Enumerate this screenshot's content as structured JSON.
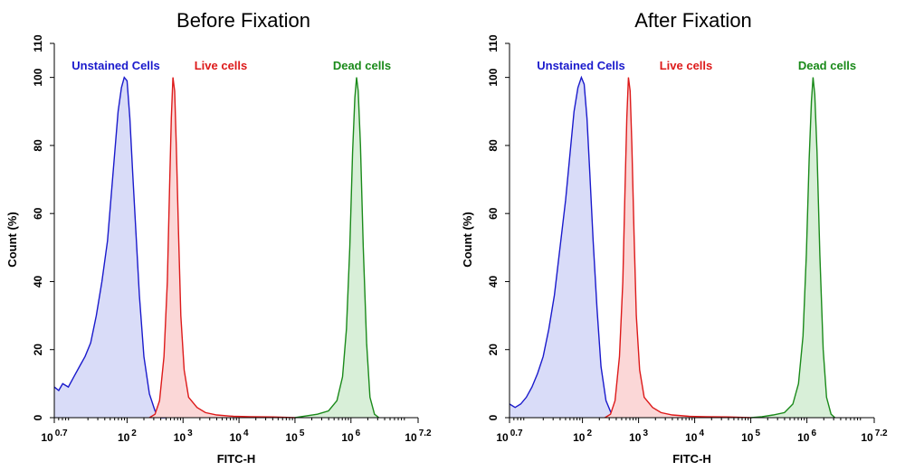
{
  "chart_data": [
    {
      "type": "area",
      "title": "Before Fixation",
      "xlabel": "FITC-H",
      "ylabel": "Count  (%)",
      "xscale": "log",
      "xlim": [
        0.7,
        7.2
      ],
      "ylim": [
        0,
        110
      ],
      "yticks": [
        0,
        20,
        40,
        60,
        80,
        100,
        110
      ],
      "xticks": [
        {
          "exp": 0.7,
          "base": "10",
          "sup": "0.7"
        },
        {
          "exp": 2,
          "base": "10",
          "sup": "2"
        },
        {
          "exp": 3,
          "base": "10",
          "sup": "3"
        },
        {
          "exp": 4,
          "base": "10",
          "sup": "4"
        },
        {
          "exp": 5,
          "base": "10",
          "sup": "5"
        },
        {
          "exp": 6,
          "base": "10",
          "sup": "6"
        },
        {
          "exp": 7.2,
          "base": "10",
          "sup": "7.2"
        }
      ],
      "grid": false,
      "series": [
        {
          "name": "Unstained Cells",
          "color": "#1a1acc",
          "fill": "#d9dcf8",
          "points": [
            [
              0.7,
              9
            ],
            [
              0.78,
              8
            ],
            [
              0.85,
              10
            ],
            [
              0.95,
              9
            ],
            [
              1.05,
              12
            ],
            [
              1.15,
              15
            ],
            [
              1.25,
              18
            ],
            [
              1.35,
              22
            ],
            [
              1.45,
              30
            ],
            [
              1.55,
              40
            ],
            [
              1.65,
              52
            ],
            [
              1.72,
              66
            ],
            [
              1.78,
              78
            ],
            [
              1.84,
              90
            ],
            [
              1.9,
              97
            ],
            [
              1.95,
              100
            ],
            [
              2.0,
              99
            ],
            [
              2.05,
              88
            ],
            [
              2.1,
              72
            ],
            [
              2.16,
              54
            ],
            [
              2.22,
              36
            ],
            [
              2.3,
              18
            ],
            [
              2.4,
              7
            ],
            [
              2.5,
              2
            ],
            [
              2.6,
              0
            ],
            [
              2.7,
              0
            ]
          ]
        },
        {
          "name": "Live cells",
          "color": "#dd1a1a",
          "fill": "#fbd7d7",
          "points": [
            [
              2.4,
              0
            ],
            [
              2.5,
              1
            ],
            [
              2.58,
              5
            ],
            [
              2.66,
              18
            ],
            [
              2.72,
              40
            ],
            [
              2.76,
              68
            ],
            [
              2.79,
              88
            ],
            [
              2.82,
              100
            ],
            [
              2.85,
              96
            ],
            [
              2.88,
              80
            ],
            [
              2.92,
              54
            ],
            [
              2.96,
              30
            ],
            [
              3.02,
              14
            ],
            [
              3.1,
              6
            ],
            [
              3.25,
              3
            ],
            [
              3.4,
              1.5
            ],
            [
              3.6,
              0.8
            ],
            [
              3.9,
              0.4
            ],
            [
              4.2,
              0.3
            ],
            [
              4.6,
              0.2
            ],
            [
              5.0,
              0
            ]
          ]
        },
        {
          "name": "Dead cells",
          "color": "#1a8a1a",
          "fill": "#d8efd8",
          "points": [
            [
              5.0,
              0
            ],
            [
              5.2,
              0.5
            ],
            [
              5.4,
              1
            ],
            [
              5.6,
              2
            ],
            [
              5.75,
              5
            ],
            [
              5.85,
              12
            ],
            [
              5.92,
              26
            ],
            [
              5.98,
              50
            ],
            [
              6.03,
              78
            ],
            [
              6.07,
              94
            ],
            [
              6.1,
              100
            ],
            [
              6.13,
              96
            ],
            [
              6.17,
              80
            ],
            [
              6.22,
              50
            ],
            [
              6.28,
              22
            ],
            [
              6.34,
              6
            ],
            [
              6.42,
              1
            ],
            [
              6.5,
              0
            ]
          ]
        }
      ]
    },
    {
      "type": "area",
      "title": "After Fixation",
      "xlabel": "FITC-H",
      "ylabel": "Count  (%)",
      "xscale": "log",
      "xlim": [
        0.7,
        7.2
      ],
      "ylim": [
        0,
        110
      ],
      "yticks": [
        0,
        20,
        40,
        60,
        80,
        100,
        110
      ],
      "xticks": [
        {
          "exp": 0.7,
          "base": "10",
          "sup": "0.7"
        },
        {
          "exp": 2,
          "base": "10",
          "sup": "2"
        },
        {
          "exp": 3,
          "base": "10",
          "sup": "3"
        },
        {
          "exp": 4,
          "base": "10",
          "sup": "4"
        },
        {
          "exp": 5,
          "base": "10",
          "sup": "5"
        },
        {
          "exp": 6,
          "base": "10",
          "sup": "6"
        },
        {
          "exp": 7.2,
          "base": "10",
          "sup": "7.2"
        }
      ],
      "grid": false,
      "series": [
        {
          "name": "Unstained Cells",
          "color": "#1a1acc",
          "fill": "#d9dcf8",
          "points": [
            [
              0.7,
              4
            ],
            [
              0.8,
              3
            ],
            [
              0.9,
              4
            ],
            [
              1.0,
              6
            ],
            [
              1.1,
              9
            ],
            [
              1.2,
              13
            ],
            [
              1.3,
              18
            ],
            [
              1.4,
              26
            ],
            [
              1.5,
              36
            ],
            [
              1.6,
              50
            ],
            [
              1.7,
              64
            ],
            [
              1.78,
              78
            ],
            [
              1.85,
              90
            ],
            [
              1.92,
              97
            ],
            [
              1.98,
              100
            ],
            [
              2.03,
              98
            ],
            [
              2.08,
              88
            ],
            [
              2.13,
              72
            ],
            [
              2.19,
              52
            ],
            [
              2.26,
              32
            ],
            [
              2.33,
              15
            ],
            [
              2.42,
              5
            ],
            [
              2.52,
              1
            ],
            [
              2.62,
              0
            ]
          ]
        },
        {
          "name": "Live cells",
          "color": "#dd1a1a",
          "fill": "#fbd7d7",
          "points": [
            [
              2.4,
              0
            ],
            [
              2.5,
              1
            ],
            [
              2.58,
              5
            ],
            [
              2.66,
              18
            ],
            [
              2.72,
              40
            ],
            [
              2.76,
              68
            ],
            [
              2.79,
              88
            ],
            [
              2.82,
              100
            ],
            [
              2.85,
              96
            ],
            [
              2.88,
              80
            ],
            [
              2.92,
              54
            ],
            [
              2.96,
              30
            ],
            [
              3.02,
              14
            ],
            [
              3.1,
              6
            ],
            [
              3.25,
              3
            ],
            [
              3.4,
              1.5
            ],
            [
              3.6,
              0.8
            ],
            [
              3.9,
              0.4
            ],
            [
              4.2,
              0.3
            ],
            [
              4.6,
              0.2
            ],
            [
              5.0,
              0
            ]
          ]
        },
        {
          "name": "Dead cells",
          "color": "#1a8a1a",
          "fill": "#d8efd8",
          "points": [
            [
              5.0,
              0
            ],
            [
              5.2,
              0.3
            ],
            [
              5.4,
              0.8
            ],
            [
              5.6,
              1.5
            ],
            [
              5.75,
              4
            ],
            [
              5.85,
              10
            ],
            [
              5.93,
              24
            ],
            [
              5.99,
              48
            ],
            [
              6.04,
              76
            ],
            [
              6.08,
              93
            ],
            [
              6.11,
              100
            ],
            [
              6.14,
              95
            ],
            [
              6.18,
              78
            ],
            [
              6.23,
              48
            ],
            [
              6.29,
              20
            ],
            [
              6.35,
              6
            ],
            [
              6.43,
              1
            ],
            [
              6.5,
              0
            ]
          ]
        }
      ]
    }
  ]
}
